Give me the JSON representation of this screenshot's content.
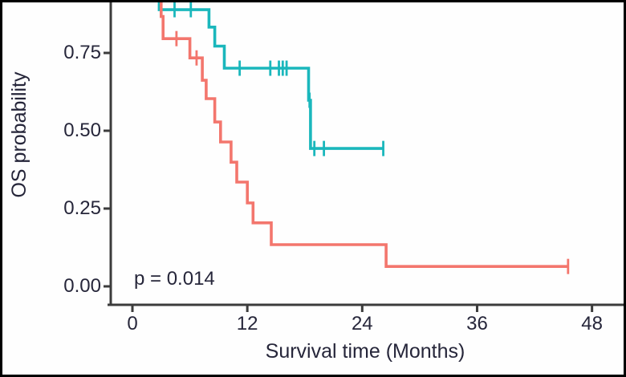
{
  "chart_data": {
    "type": "line",
    "subtype": "kaplan-meier-step-curves",
    "title": "",
    "xlabel": "Survival time (Months)",
    "ylabel": "OS probability",
    "annotation": "p = 0.014",
    "grid": false,
    "legend": "none",
    "xlim_visible": [
      -2.3,
      51.5
    ],
    "ylim_visible": [
      -0.05,
      0.92
    ],
    "x_ticks": [
      {
        "value": 0,
        "label": "0"
      },
      {
        "value": 12,
        "label": "12"
      },
      {
        "value": 24,
        "label": "24"
      },
      {
        "value": 36,
        "label": "36"
      },
      {
        "value": 48,
        "label": "48"
      }
    ],
    "y_ticks": [
      {
        "value": 0.0,
        "label": "0.00"
      },
      {
        "value": 0.25,
        "label": "0.25"
      },
      {
        "value": 0.5,
        "label": "0.50"
      },
      {
        "value": 0.75,
        "label": "0.75"
      }
    ],
    "colors": {
      "series_teal": "#1ab7bc",
      "series_salmon": "#f3766d",
      "axis": "#3c3c3c",
      "text": "#26263a",
      "frame": "#000000"
    },
    "series": [
      {
        "name": "group-teal",
        "color": "#1ab7bc",
        "points": [
          [
            2.8,
            1.0
          ],
          [
            2.8,
            0.889
          ],
          [
            8.0,
            0.889
          ],
          [
            8.0,
            0.833
          ],
          [
            8.6,
            0.833
          ],
          [
            8.6,
            0.772
          ],
          [
            9.6,
            0.772
          ],
          [
            9.6,
            0.701
          ],
          [
            18.4,
            0.701
          ],
          [
            18.4,
            0.598
          ],
          [
            18.6,
            0.598
          ],
          [
            18.6,
            0.443
          ],
          [
            26.2,
            0.443
          ]
        ],
        "censor_marks": [
          [
            4.4,
            0.889
          ],
          [
            6.1,
            0.889
          ],
          [
            11.2,
            0.701
          ],
          [
            14.4,
            0.701
          ],
          [
            15.3,
            0.701
          ],
          [
            15.7,
            0.701
          ],
          [
            16.1,
            0.701
          ],
          [
            18.5,
            0.598
          ],
          [
            19.0,
            0.443
          ],
          [
            20.0,
            0.443
          ],
          [
            26.2,
            0.443
          ]
        ]
      },
      {
        "name": "group-salmon",
        "color": "#f3766d",
        "points": [
          [
            3.0,
            1.0
          ],
          [
            3.0,
            0.867
          ],
          [
            3.2,
            0.867
          ],
          [
            3.2,
            0.796
          ],
          [
            6.0,
            0.796
          ],
          [
            6.0,
            0.734
          ],
          [
            7.3,
            0.734
          ],
          [
            7.3,
            0.662
          ],
          [
            7.7,
            0.662
          ],
          [
            7.7,
            0.603
          ],
          [
            8.6,
            0.603
          ],
          [
            8.6,
            0.528
          ],
          [
            9.2,
            0.528
          ],
          [
            9.2,
            0.464
          ],
          [
            10.3,
            0.464
          ],
          [
            10.3,
            0.399
          ],
          [
            10.9,
            0.399
          ],
          [
            10.9,
            0.335
          ],
          [
            12.0,
            0.335
          ],
          [
            12.0,
            0.268
          ],
          [
            12.6,
            0.268
          ],
          [
            12.6,
            0.204
          ],
          [
            14.5,
            0.204
          ],
          [
            14.5,
            0.134
          ],
          [
            26.5,
            0.134
          ],
          [
            26.5,
            0.064
          ],
          [
            45.5,
            0.064
          ]
        ],
        "censor_marks": [
          [
            4.6,
            0.796
          ],
          [
            6.7,
            0.734
          ],
          [
            45.5,
            0.064
          ]
        ]
      }
    ]
  }
}
